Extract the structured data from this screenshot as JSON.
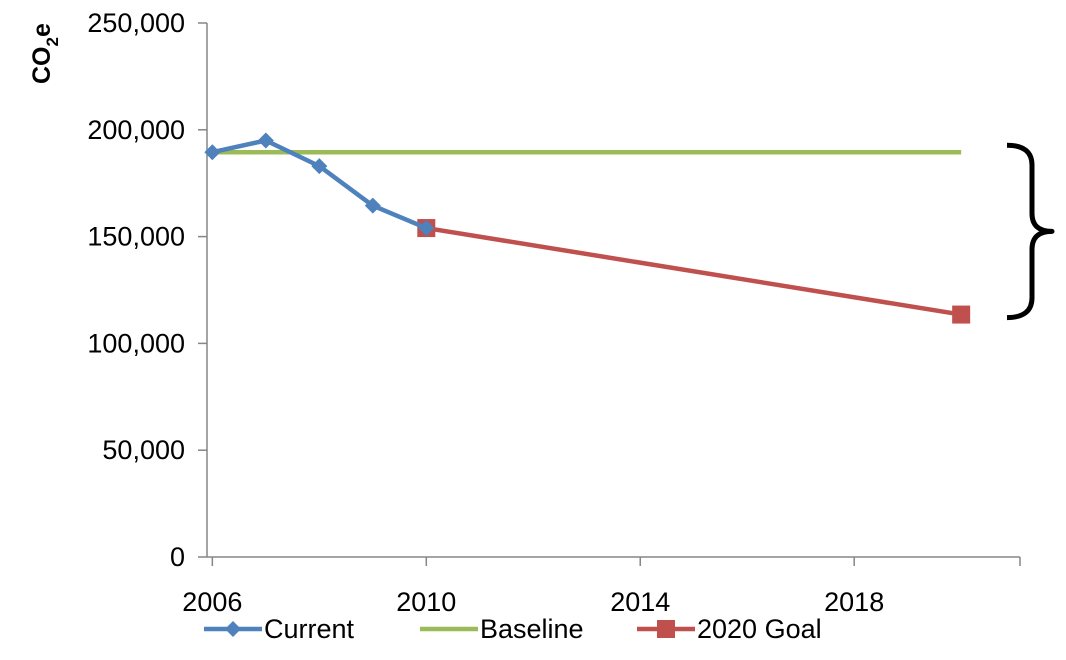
{
  "chart_data": {
    "type": "line",
    "title": "",
    "xlabel": "",
    "ylabel": {
      "main": "CO",
      "sub": "2",
      "suffix": "e"
    },
    "xlim": [
      2006,
      2020
    ],
    "ylim": [
      0,
      250000
    ],
    "x_ticks": [
      "2006",
      "2010",
      "2014",
      "2018"
    ],
    "y_ticks": [
      "0",
      "50,000",
      "100,000",
      "150,000",
      "200,000",
      "250,000"
    ],
    "grid": false,
    "legend_position": "bottom",
    "series": [
      {
        "name": "Current",
        "color": "#4F81BD",
        "marker": "diamond",
        "points": [
          [
            2006,
            189500
          ],
          [
            2007,
            195000
          ],
          [
            2008,
            183000
          ],
          [
            2009,
            164500
          ],
          [
            2010,
            154000
          ]
        ]
      },
      {
        "name": "Baseline",
        "color": "#9BBB59",
        "marker": "none",
        "points": [
          [
            2006,
            189500
          ],
          [
            2020,
            189500
          ]
        ]
      },
      {
        "name": "2020 Goal",
        "color": "#C0504D",
        "marker": "square",
        "points": [
          [
            2010,
            154000
          ],
          [
            2020,
            113500
          ]
        ]
      }
    ],
    "annotation": {
      "type": "curly-brace",
      "range": [
        113500,
        189500
      ]
    }
  }
}
